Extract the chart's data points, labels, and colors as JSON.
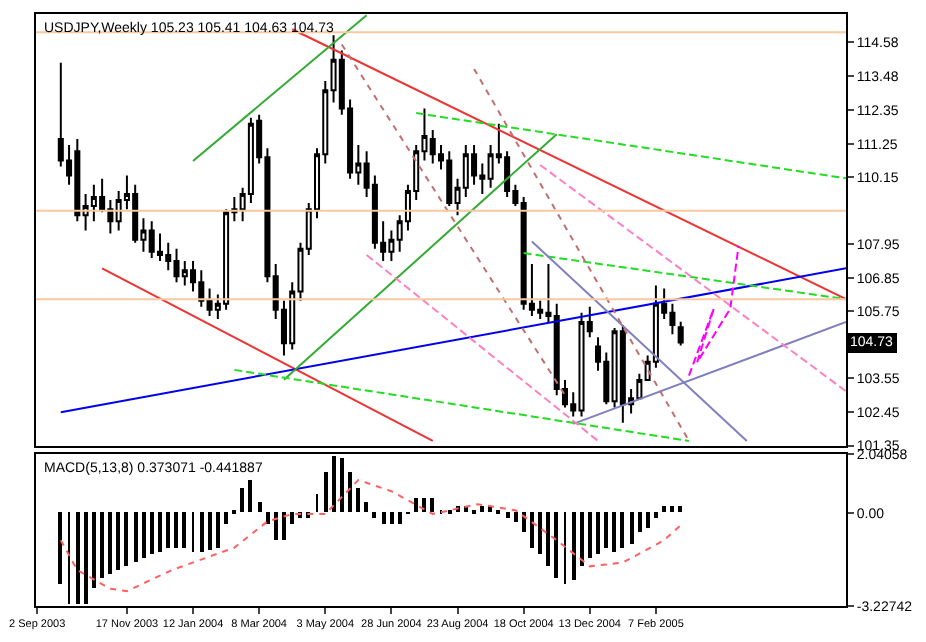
{
  "chart_data": [
    {
      "type": "candlestick",
      "title": "USDJPY,Weekly 105.23 105.41 104.63 104.73",
      "x": [
        "2003-09-22",
        "2003-09-29",
        "2003-10-06",
        "2003-10-13",
        "2003-10-20",
        "2003-10-27",
        "2003-11-03",
        "2003-11-10",
        "2003-11-17",
        "2003-11-24",
        "2003-12-01",
        "2003-12-08",
        "2003-12-15",
        "2003-12-22",
        "2003-12-29",
        "2004-01-05",
        "2004-01-12",
        "2004-01-19",
        "2004-01-26",
        "2004-02-02",
        "2004-02-09",
        "2004-02-16",
        "2004-02-23",
        "2004-03-01",
        "2004-03-08",
        "2004-03-15",
        "2004-03-22",
        "2004-03-29",
        "2004-04-05",
        "2004-04-12",
        "2004-04-19",
        "2004-04-26",
        "2004-05-03",
        "2004-05-10",
        "2004-05-17",
        "2004-05-24",
        "2004-05-31",
        "2004-06-07",
        "2004-06-14",
        "2004-06-21",
        "2004-06-28",
        "2004-07-05",
        "2004-07-12",
        "2004-07-19",
        "2004-07-26",
        "2004-08-02",
        "2004-08-09",
        "2004-08-16",
        "2004-08-23",
        "2004-08-30",
        "2004-09-06",
        "2004-09-13",
        "2004-09-20",
        "2004-09-27",
        "2004-10-04",
        "2004-10-11",
        "2004-10-18",
        "2004-10-25",
        "2004-11-01",
        "2004-11-08",
        "2004-11-15",
        "2004-11-22",
        "2004-11-29",
        "2004-12-06",
        "2004-12-13",
        "2004-12-20",
        "2004-12-27",
        "2005-01-03",
        "2005-01-10",
        "2005-01-17",
        "2005-01-24",
        "2005-01-31",
        "2005-02-07",
        "2005-02-14",
        "2005-02-21",
        "2005-02-28"
      ],
      "ohlc": [
        [
          111.4,
          113.9,
          110.5,
          110.7
        ],
        [
          110.7,
          111.2,
          109.9,
          110.2
        ],
        [
          111.0,
          111.4,
          108.7,
          108.9
        ],
        [
          108.9,
          109.6,
          108.4,
          109.2
        ],
        [
          109.2,
          109.9,
          108.7,
          109.5
        ],
        [
          109.5,
          110.1,
          109.0,
          109.1
        ],
        [
          109.1,
          109.4,
          108.3,
          108.7
        ],
        [
          108.7,
          109.7,
          108.4,
          109.4
        ],
        [
          109.4,
          110.2,
          109.1,
          109.6
        ],
        [
          109.6,
          109.9,
          108.0,
          108.1
        ],
        [
          108.1,
          108.8,
          107.7,
          108.4
        ],
        [
          108.4,
          108.7,
          107.5,
          107.7
        ],
        [
          107.7,
          108.3,
          107.4,
          107.6
        ],
        [
          107.6,
          108.0,
          107.1,
          107.4
        ],
        [
          107.4,
          107.8,
          106.7,
          106.9
        ],
        [
          106.9,
          107.4,
          106.6,
          107.1
        ],
        [
          107.1,
          107.4,
          106.4,
          106.7
        ],
        [
          106.7,
          107.1,
          105.9,
          106.1
        ],
        [
          106.1,
          106.5,
          105.6,
          105.8
        ],
        [
          105.8,
          106.3,
          105.5,
          106.0
        ],
        [
          106.0,
          109.1,
          105.8,
          109.0
        ],
        [
          109.0,
          109.5,
          108.7,
          109.1
        ],
        [
          109.1,
          109.8,
          108.7,
          109.6
        ],
        [
          109.6,
          112.1,
          109.3,
          111.9
        ],
        [
          112.0,
          112.2,
          110.6,
          110.8
        ],
        [
          110.8,
          111.1,
          106.7,
          106.9
        ],
        [
          106.9,
          107.3,
          105.5,
          105.8
        ],
        [
          105.8,
          106.1,
          104.3,
          104.7
        ],
        [
          104.7,
          106.7,
          104.5,
          106.4
        ],
        [
          106.4,
          108.0,
          106.1,
          107.8
        ],
        [
          107.8,
          109.3,
          107.6,
          109.1
        ],
        [
          109.1,
          111.1,
          108.8,
          110.9
        ],
        [
          110.9,
          113.3,
          110.6,
          113.0
        ],
        [
          113.0,
          114.8,
          112.6,
          114.0
        ],
        [
          114.0,
          114.3,
          112.2,
          112.4
        ],
        [
          112.4,
          112.7,
          110.1,
          110.3
        ],
        [
          110.3,
          111.2,
          109.9,
          110.6
        ],
        [
          110.6,
          111.0,
          109.5,
          109.8
        ],
        [
          109.9,
          110.2,
          107.8,
          108.0
        ],
        [
          108.0,
          108.7,
          107.4,
          107.7
        ],
        [
          107.7,
          108.4,
          107.4,
          108.1
        ],
        [
          108.1,
          108.9,
          107.7,
          108.7
        ],
        [
          108.7,
          109.9,
          108.4,
          109.7
        ],
        [
          109.7,
          111.2,
          109.4,
          111.0
        ],
        [
          111.0,
          112.4,
          110.7,
          111.5
        ],
        [
          111.4,
          111.7,
          110.6,
          110.9
        ],
        [
          110.9,
          111.2,
          110.4,
          110.7
        ],
        [
          110.7,
          111.0,
          109.2,
          109.3
        ],
        [
          109.3,
          110.1,
          108.9,
          109.8
        ],
        [
          109.8,
          111.2,
          109.5,
          110.9
        ],
        [
          110.9,
          111.2,
          109.9,
          110.2
        ],
        [
          110.2,
          110.6,
          109.6,
          110.1
        ],
        [
          110.1,
          111.2,
          109.8,
          110.9
        ],
        [
          110.9,
          111.9,
          110.6,
          110.8
        ],
        [
          110.8,
          111.0,
          109.5,
          109.7
        ],
        [
          109.7,
          109.9,
          109.2,
          109.3
        ],
        [
          109.3,
          109.5,
          105.8,
          106.0
        ],
        [
          106.0,
          107.3,
          105.6,
          105.8
        ],
        [
          105.8,
          106.1,
          105.5,
          105.7
        ],
        [
          105.7,
          107.3,
          105.4,
          105.6
        ],
        [
          105.6,
          106.0,
          103.0,
          103.2
        ],
        [
          103.2,
          103.5,
          102.6,
          102.7
        ],
        [
          102.7,
          103.1,
          102.3,
          102.5
        ],
        [
          102.5,
          105.7,
          102.3,
          105.4
        ],
        [
          105.4,
          105.9,
          104.9,
          105.1
        ],
        [
          104.6,
          104.9,
          103.8,
          104.1
        ],
        [
          104.1,
          104.4,
          102.7,
          102.8
        ],
        [
          102.8,
          105.2,
          102.6,
          105.1
        ],
        [
          105.1,
          105.3,
          102.1,
          102.7
        ],
        [
          102.7,
          103.2,
          102.4,
          102.9
        ],
        [
          102.9,
          103.7,
          102.9,
          103.5
        ],
        [
          103.5,
          104.3,
          103.5,
          104.1
        ],
        [
          104.1,
          106.6,
          103.9,
          106.0
        ],
        [
          106.0,
          106.5,
          105.5,
          105.7
        ],
        [
          105.7,
          106.0,
          105.0,
          105.3
        ],
        [
          105.23,
          105.41,
          104.63,
          104.73
        ]
      ],
      "series": [
        {
          "type": "line",
          "color": "#ee3333",
          "x": [
            "2004-04-05",
            "2005-07-18"
          ],
          "values": [
            115.0,
            106.15
          ]
        },
        {
          "type": "line",
          "color": "#ee3333",
          "x": [
            "2003-10-27",
            "2004-08-02"
          ],
          "values": [
            107.16,
            101.5
          ]
        },
        {
          "type": "line",
          "color": "#0000ee",
          "x": [
            "2003-09-22",
            "2005-07-18"
          ],
          "values": [
            102.44,
            107.16
          ]
        },
        {
          "type": "line",
          "color": "#33aa33",
          "x": [
            "2004-01-12",
            "2004-06-07"
          ],
          "values": [
            110.68,
            115.46
          ]
        },
        {
          "type": "line",
          "color": "#33aa33",
          "x": [
            "2004-03-29",
            "2004-11-15"
          ],
          "values": [
            103.51,
            111.56
          ]
        },
        {
          "type": "line",
          "color": "#22dd22",
          "line_style": "dashed",
          "x": [
            "2004-07-19",
            "2005-07-18"
          ],
          "values": [
            112.25,
            110.11
          ]
        },
        {
          "type": "line",
          "color": "#22dd22",
          "line_style": "dashed",
          "x": [
            "2004-10-18",
            "2005-07-18"
          ],
          "values": [
            107.66,
            106.15
          ]
        },
        {
          "type": "line",
          "color": "#22dd22",
          "line_style": "dashed",
          "x": [
            "2004-02-16",
            "2005-03-07"
          ],
          "values": [
            103.83,
            101.5
          ]
        },
        {
          "type": "line",
          "color": "#8080c0",
          "x": [
            "2004-11-29",
            "2005-07-18"
          ],
          "values": [
            102.06,
            105.4
          ]
        },
        {
          "type": "line",
          "color": "#8080c0",
          "x": [
            "2004-10-25",
            "2005-04-25"
          ],
          "values": [
            108.04,
            101.5
          ]
        },
        {
          "type": "line",
          "color": "#ff80c0",
          "line_style": "dashed",
          "x": [
            "2004-06-07",
            "2004-12-20"
          ],
          "values": [
            107.6,
            101.5
          ]
        },
        {
          "type": "line",
          "color": "#ff80c0",
          "line_style": "dashed",
          "x": [
            "2004-11-01",
            "2005-07-18"
          ],
          "values": [
            110.55,
            103.13
          ]
        },
        {
          "type": "line",
          "color": "#c07070",
          "line_style": "dotted",
          "x": [
            "2004-05-17",
            "2004-11-22"
          ],
          "values": [
            114.5,
            103.0
          ]
        },
        {
          "type": "line",
          "color": "#c07070",
          "line_style": "dotted",
          "x": [
            "2004-09-06",
            "2005-03-07"
          ],
          "values": [
            113.7,
            101.5
          ]
        },
        {
          "type": "line",
          "color": "#ff00ff",
          "line_style": "dashed",
          "x": [
            "2005-03-07",
            "2005-03-28",
            "2005-03-14",
            "2005-04-11",
            "2005-04-18"
          ],
          "values": [
            103.64,
            105.84,
            104.08,
            105.84,
            107.9
          ]
        }
      ],
      "ref_lines": [
        {
          "axis": "y",
          "value": 114.9,
          "color": "#f8c8a0"
        },
        {
          "axis": "y",
          "value": 109.05,
          "color": "#f8c8a0"
        },
        {
          "axis": "y",
          "value": 106.15,
          "color": "#f8c8a0"
        }
      ],
      "annotations": [
        {
          "text": "104.73",
          "y": 104.73
        }
      ],
      "xlim": [
        "2003-09-01",
        "2005-07-18"
      ],
      "ylim": [
        101.35,
        115.5
      ],
      "yticks": [
        101.35,
        102.45,
        103.55,
        105.75,
        106.85,
        107.95,
        110.15,
        111.25,
        112.35,
        113.48,
        114.58
      ],
      "tick_labels": "y"
    },
    {
      "type": "bar",
      "title": "MACD(5,13,8) 0.373071 -0.441887",
      "x": [
        "2003-09-22",
        "2003-09-29",
        "2003-10-06",
        "2003-10-13",
        "2003-10-20",
        "2003-10-27",
        "2003-11-03",
        "2003-11-10",
        "2003-11-17",
        "2003-11-24",
        "2003-12-01",
        "2003-12-08",
        "2003-12-15",
        "2003-12-22",
        "2003-12-29",
        "2004-01-05",
        "2004-01-12",
        "2004-01-19",
        "2004-01-26",
        "2004-02-02",
        "2004-02-09",
        "2004-02-16",
        "2004-02-23",
        "2004-03-01",
        "2004-03-08",
        "2004-03-15",
        "2004-03-22",
        "2004-03-29",
        "2004-04-05",
        "2004-04-12",
        "2004-04-19",
        "2004-04-26",
        "2004-05-03",
        "2004-05-10",
        "2004-05-17",
        "2004-05-24",
        "2004-05-31",
        "2004-06-07",
        "2004-06-14",
        "2004-06-21",
        "2004-06-28",
        "2004-07-05",
        "2004-07-12",
        "2004-07-19",
        "2004-07-26",
        "2004-08-02",
        "2004-08-09",
        "2004-08-16",
        "2004-08-23",
        "2004-08-30",
        "2004-09-06",
        "2004-09-13",
        "2004-09-20",
        "2004-09-27",
        "2004-10-04",
        "2004-10-11",
        "2004-10-18",
        "2004-10-25",
        "2004-11-01",
        "2004-11-08",
        "2004-11-15",
        "2004-11-22",
        "2004-11-29",
        "2004-12-06",
        "2004-12-13",
        "2004-12-20",
        "2004-12-27",
        "2005-01-03",
        "2005-01-10",
        "2005-01-17",
        "2005-01-24",
        "2005-01-31",
        "2005-02-07",
        "2005-02-14",
        "2005-02-21",
        "2005-02-28"
      ],
      "series": [
        {
          "type": "bar",
          "color": "#000000",
          "values": [
            -2.5,
            -3.15,
            -3.15,
            -3.15,
            -2.63,
            -2.24,
            -2.11,
            -1.98,
            -1.85,
            -1.72,
            -1.59,
            -1.46,
            -1.33,
            -1.2,
            -1.2,
            -1.2,
            -1.33,
            -1.33,
            -1.28,
            -1.2,
            -0.42,
            0.1,
            0.89,
            1.15,
            0.36,
            -0.42,
            -0.94,
            -0.94,
            -0.42,
            -0.16,
            -0.16,
            0.63,
            1.41,
            2.0,
            1.93,
            1.41,
            0.89,
            0.36,
            -0.16,
            -0.42,
            -0.42,
            -0.42,
            -0.03,
            0.49,
            0.49,
            0.49,
            0.05,
            0.05,
            0.23,
            0.23,
            0.1,
            0.23,
            0.23,
            0.05,
            -0.16,
            -0.29,
            -0.68,
            -1.2,
            -1.46,
            -1.85,
            -2.24,
            -2.5,
            -2.37,
            -1.85,
            -1.59,
            -1.46,
            -1.2,
            -1.33,
            -1.2,
            -1.07,
            -0.68,
            -0.55,
            -0.16,
            0.23,
            0.23,
            0.23
          ]
        },
        {
          "type": "line",
          "color": "#ff6060",
          "line_style": "dotted",
          "x": [
            "2003-09-22",
            "2003-10-06",
            "2003-11-03",
            "2003-11-17",
            "2003-12-25",
            "2004-02-16",
            "2004-03-15",
            "2004-04-05",
            "2004-05-03",
            "2004-05-31",
            "2004-06-28",
            "2004-08-02",
            "2004-09-09",
            "2004-10-11",
            "2004-11-15",
            "2004-12-13",
            "2005-01-10",
            "2005-02-14",
            "2005-02-28"
          ],
          "values": [
            -0.94,
            -1.98,
            -2.63,
            -2.71,
            -1.98,
            -1.2,
            -0.29,
            -0.03,
            -0.03,
            1.15,
            0.76,
            -0.03,
            0.31,
            0.1,
            -0.94,
            -1.85,
            -1.72,
            -0.94,
            -0.42
          ]
        }
      ],
      "xlim": [
        "2003-09-01",
        "2005-07-18"
      ],
      "ylim": [
        -3.22742,
        2.04058
      ],
      "xticks": [
        {
          "value": "2003-09-02",
          "label": "2 Sep 2003"
        },
        {
          "value": "2003-11-17",
          "label": "17 Nov 2003"
        },
        {
          "value": "2004-01-12",
          "label": "12 Jan 2004"
        },
        {
          "value": "2004-03-08",
          "label": "8 Mar 2004"
        },
        {
          "value": "2004-05-03",
          "label": "3 May 2004"
        },
        {
          "value": "2004-06-28",
          "label": "28 Jun 2004"
        },
        {
          "value": "2004-08-23",
          "label": "23 Aug 2004"
        },
        {
          "value": "2004-10-18",
          "label": "18 Oct 2004"
        },
        {
          "value": "2004-12-13",
          "label": "13 Dec 2004"
        },
        {
          "value": "2005-02-07",
          "label": "7 Feb 2005"
        }
      ],
      "yticks": [
        -3.22742,
        {
          "value": 0,
          "label": "0.00"
        },
        2.04058
      ]
    }
  ]
}
